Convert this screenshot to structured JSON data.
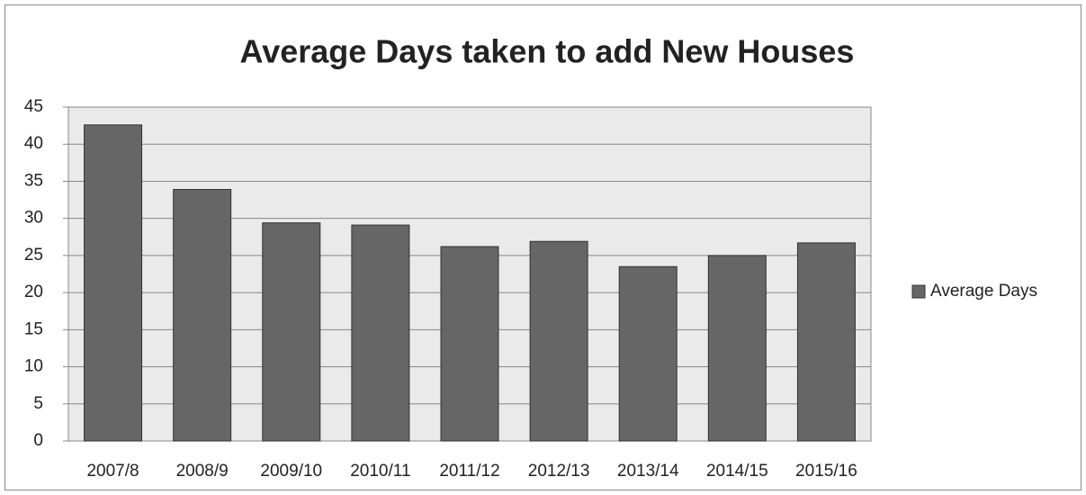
{
  "chart_data": {
    "type": "bar",
    "title": "Average Days taken to add New Houses",
    "categories": [
      "2007/8",
      "2008/9",
      "2009/10",
      "2010/11",
      "2011/12",
      "2012/13",
      "2013/14",
      "2014/15",
      "2015/16"
    ],
    "series": [
      {
        "name": "Average Days",
        "color": "#666666",
        "values": [
          42.6,
          33.9,
          29.4,
          29.1,
          26.2,
          26.9,
          23.5,
          25.0,
          26.7
        ]
      }
    ],
    "ylim": [
      0,
      45
    ],
    "yticks": [
      0,
      5,
      10,
      15,
      20,
      25,
      30,
      35,
      40,
      45
    ],
    "grid": true,
    "legend": "right"
  }
}
